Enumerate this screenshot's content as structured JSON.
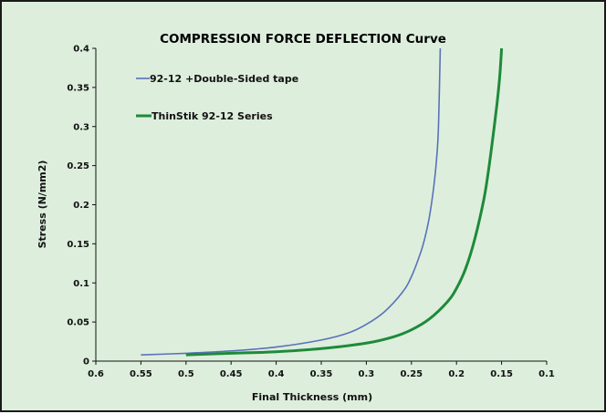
{
  "chart_data": {
    "type": "line",
    "title": "COMPRESSION FORCE DEFLECTION Curve",
    "xlabel": "Final Thickness (mm)",
    "ylabel": "Stress (N/mm2)",
    "x_axis_reversed": true,
    "xlim": [
      0.6,
      0.1
    ],
    "ylim": [
      0,
      0.4
    ],
    "xticks": [
      "0.6",
      "0.55",
      "0.5",
      "0.45",
      "0.4",
      "0.35",
      "0.3",
      "0.25",
      "0.2",
      "0.15",
      "0.1"
    ],
    "yticks": [
      "0",
      "0.05",
      "0.1",
      "0.15",
      "0.2",
      "0.25",
      "0.3",
      "0.35",
      "0.4"
    ],
    "grid": false,
    "legend_placement": "top-left",
    "series": [
      {
        "name": "92-12 +Double-Sided tape",
        "color": "#5a72b8",
        "x": [
          0.55,
          0.5,
          0.45,
          0.4,
          0.35,
          0.32,
          0.3,
          0.28,
          0.26,
          0.25,
          0.24,
          0.235,
          0.23,
          0.225,
          0.222,
          0.22,
          0.218
        ],
        "y": [
          0.008,
          0.01,
          0.013,
          0.018,
          0.027,
          0.036,
          0.047,
          0.063,
          0.088,
          0.108,
          0.138,
          0.158,
          0.185,
          0.225,
          0.26,
          0.3,
          0.4
        ]
      },
      {
        "name": "ThinStik 92-12 Series",
        "color": "#1e8a3a",
        "x": [
          0.5,
          0.45,
          0.4,
          0.35,
          0.3,
          0.27,
          0.25,
          0.23,
          0.21,
          0.2,
          0.19,
          0.18,
          0.17,
          0.165,
          0.16,
          0.155,
          0.152,
          0.15
        ],
        "y": [
          0.008,
          0.01,
          0.012,
          0.016,
          0.023,
          0.031,
          0.04,
          0.054,
          0.076,
          0.093,
          0.118,
          0.155,
          0.205,
          0.24,
          0.283,
          0.33,
          0.365,
          0.4
        ]
      }
    ]
  }
}
